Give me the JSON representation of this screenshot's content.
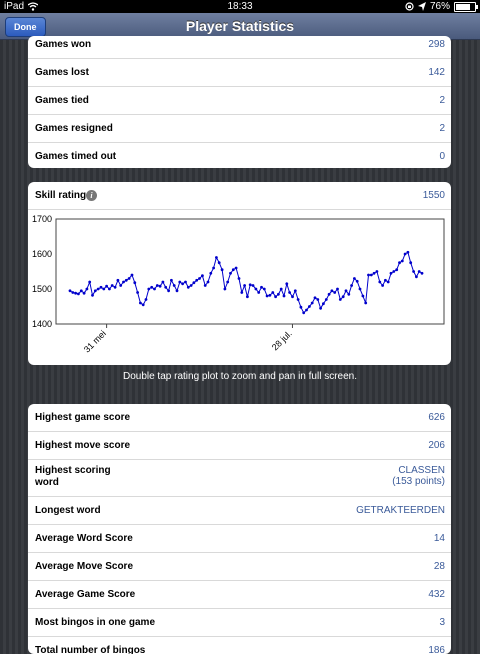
{
  "status_bar": {
    "device": "iPad",
    "time": "18:33",
    "battery": "76%",
    "battery_level": 0.76
  },
  "nav": {
    "title": "Player Statistics",
    "done_label": "Done"
  },
  "stats_top": [
    {
      "label": "Games won",
      "value": "298"
    },
    {
      "label": "Games lost",
      "value": "142"
    },
    {
      "label": "Games tied",
      "value": "2"
    },
    {
      "label": "Games resigned",
      "value": "2"
    },
    {
      "label": "Games timed out",
      "value": "0"
    }
  ],
  "skill": {
    "label": "Skill rating",
    "value": "1550"
  },
  "chart_data": {
    "type": "line",
    "title": "",
    "ylim": [
      1400,
      1700
    ],
    "yticks": [
      "1700",
      "1600",
      "1500",
      "1400"
    ],
    "xticks": [
      {
        "label": "31 mei",
        "index": 13
      },
      {
        "label": "28 jul.",
        "index": 79
      }
    ],
    "grid": false,
    "color": "#0000cc",
    "values": [
      1495,
      1490,
      1488,
      1486,
      1495,
      1488,
      1500,
      1520,
      1482,
      1495,
      1500,
      1505,
      1500,
      1508,
      1500,
      1510,
      1505,
      1525,
      1510,
      1520,
      1525,
      1530,
      1540,
      1518,
      1490,
      1460,
      1455,
      1470,
      1500,
      1505,
      1500,
      1510,
      1508,
      1520,
      1505,
      1495,
      1525,
      1510,
      1495,
      1520,
      1515,
      1520,
      1505,
      1510,
      1518,
      1525,
      1530,
      1538,
      1510,
      1520,
      1545,
      1560,
      1590,
      1575,
      1555,
      1500,
      1520,
      1545,
      1555,
      1560,
      1530,
      1490,
      1510,
      1478,
      1512,
      1510,
      1500,
      1490,
      1505,
      1500,
      1480,
      1482,
      1490,
      1478,
      1485,
      1500,
      1480,
      1515,
      1490,
      1478,
      1495,
      1470,
      1448,
      1432,
      1440,
      1450,
      1460,
      1475,
      1470,
      1445,
      1458,
      1470,
      1485,
      1495,
      1490,
      1500,
      1470,
      1478,
      1495,
      1485,
      1510,
      1530,
      1522,
      1500,
      1480,
      1460,
      1540,
      1540,
      1545,
      1550,
      1520,
      1510,
      1525,
      1520,
      1545,
      1550,
      1555,
      1575,
      1580,
      1600,
      1605,
      1575,
      1550,
      1535,
      1550,
      1545
    ]
  },
  "hint": "Double tap rating plot to zoom and pan in full screen.",
  "stats_bottom": [
    {
      "label": "Highest game score",
      "value": "626"
    },
    {
      "label": "Highest move score",
      "value": "206"
    },
    {
      "label": "Highest scoring word",
      "value": "CLASSEN",
      "sub": "(153 points)"
    },
    {
      "label": "Longest word",
      "value": "GETRAKTEERDEN"
    },
    {
      "label": "Average Word Score",
      "value": "14"
    },
    {
      "label": "Average Move Score",
      "value": "28"
    },
    {
      "label": "Average Game Score",
      "value": "432"
    },
    {
      "label": "Most bingos in one game",
      "value": "3"
    },
    {
      "label": "Total number of bingos",
      "value": "186"
    }
  ]
}
